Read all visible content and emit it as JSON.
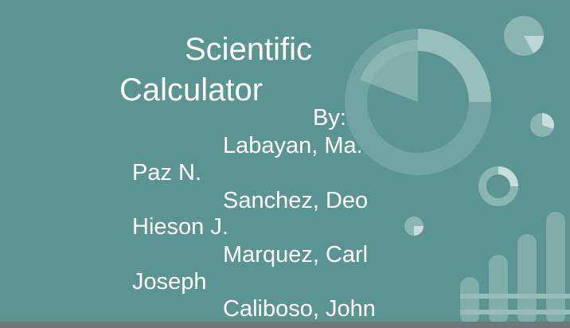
{
  "slide": {
    "title_line1": "Scientific",
    "title_line2": "Calculator",
    "by_label": "By:",
    "author_lines": [
      "Labayan, Ma.",
      "Paz N.",
      "Sanchez, Deo",
      "Hieson J.",
      "Marquez, Carl",
      "Joseph",
      "Caliboso, John"
    ]
  },
  "colors": {
    "background": "#5b9592",
    "text": "#ffffff",
    "bottom_bar": "#6b7a79"
  }
}
